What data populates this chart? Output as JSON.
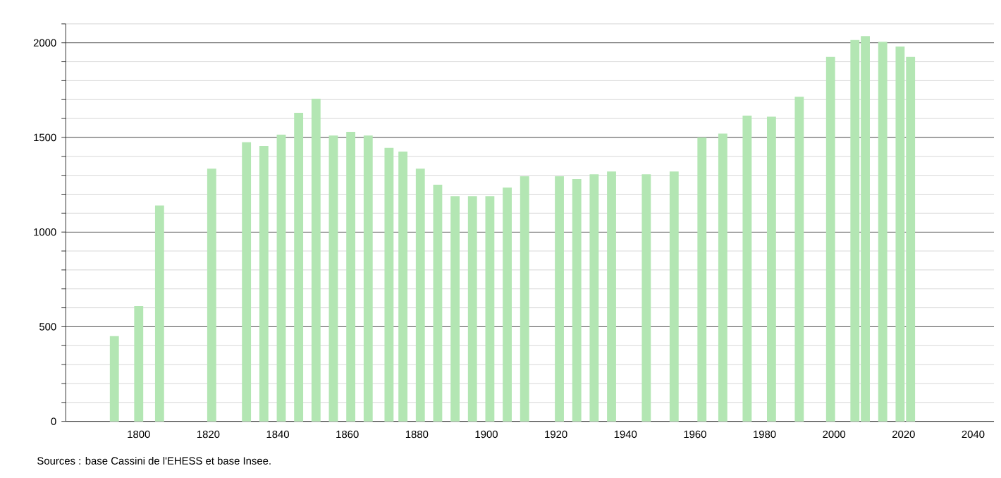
{
  "chart_data": {
    "type": "bar",
    "color": "#b3e6b3",
    "x": [
      1793,
      1800,
      1806,
      1821,
      1831,
      1836,
      1841,
      1846,
      1851,
      1856,
      1861,
      1866,
      1872,
      1876,
      1881,
      1886,
      1891,
      1896,
      1901,
      1906,
      1911,
      1921,
      1926,
      1931,
      1936,
      1946,
      1954,
      1962,
      1968,
      1975,
      1982,
      1990,
      1999,
      2006,
      2009,
      2014,
      2019,
      2022
    ],
    "values": [
      450,
      610,
      1140,
      1335,
      1475,
      1455,
      1515,
      1630,
      1705,
      1510,
      1530,
      1510,
      1445,
      1425,
      1335,
      1250,
      1190,
      1190,
      1190,
      1235,
      1295,
      1295,
      1280,
      1305,
      1320,
      1305,
      1320,
      1500,
      1520,
      1615,
      1610,
      1715,
      1925,
      2015,
      2035,
      2005,
      1980,
      1925
    ],
    "xlim": [
      1779,
      2046
    ],
    "xticks": [
      1800,
      1820,
      1840,
      1860,
      1880,
      1900,
      1920,
      1940,
      1960,
      1980,
      2000,
      2020,
      2040
    ],
    "ylim": [
      0,
      2100
    ],
    "yticks": [
      0,
      {
        "value": 100,
        "label": null
      },
      {
        "value": 200,
        "label": null
      },
      {
        "value": 300,
        "label": null
      },
      {
        "value": 400,
        "label": null
      },
      500,
      {
        "value": 600,
        "label": null
      },
      {
        "value": 700,
        "label": null
      },
      {
        "value": 800,
        "label": null
      },
      {
        "value": 900,
        "label": null
      },
      1000,
      {
        "value": 1100,
        "label": null
      },
      {
        "value": 1200,
        "label": null
      },
      {
        "value": 1300,
        "label": null
      },
      {
        "value": 1400,
        "label": null
      },
      1500,
      {
        "value": 1600,
        "label": null
      },
      {
        "value": 1700,
        "label": null
      },
      {
        "value": 1800,
        "label": null
      },
      {
        "value": 1900,
        "label": null
      },
      2000,
      {
        "value": 2100,
        "label": null
      }
    ],
    "grid": "y",
    "annotations": [
      "Sources : base Cassini de l'EHESS et base Insee."
    ]
  }
}
